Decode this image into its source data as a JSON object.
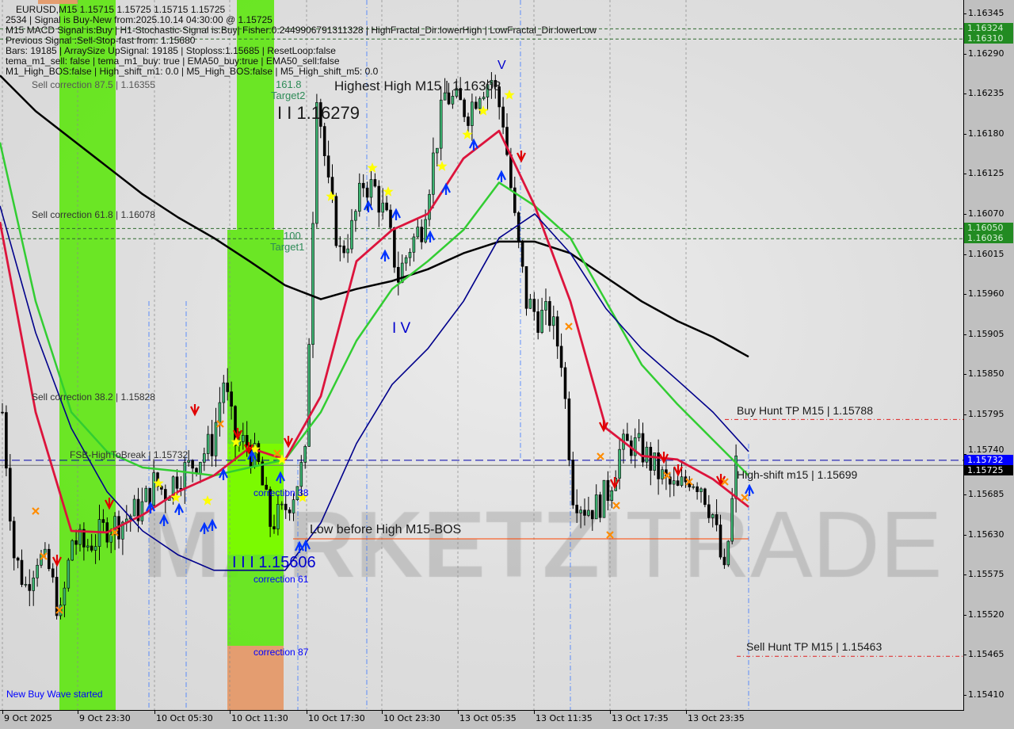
{
  "header": {
    "lines": [
      "EURUSD,M15  1.15715 1.15725 1.15715 1.15725",
      "2534 | Signal is Buy-New from:2025.10.14 04:30:00 @ 1.15725",
      "M15 MACD Signal is:Buy | H1-Stochastic-Signal is:Buy| Fisher:0.2449906791311328 | HighFractal_Dir:lowerHigh | LowFractal_Dir:lowerLow",
      "Previous Signal :Sell-Stop-fast from: 1.15680",
      "Bars: 19185 | ArraySize UpSignal: 19185 | Stoploss:1.15685 | ResetLoop:false",
      "tema_m1_sell: false | tema_m1_buy: true | EMA50_buy:true | EMA50_sell:false",
      "M1_High_BOS:false | High_shift_m1: 0.0 | M5_High_BOS:false | M5_High_shift_m5: 0.0"
    ]
  },
  "annotations": {
    "sell_corr_875": "Sell correction 87.5 | 1.16355",
    "target2_level": "161.8",
    "target2": "Target2",
    "highest_high": "Highest High  M15 | 1.16308",
    "hh_level": "I I 1.16279",
    "sell_corr_618": "Sell correction 61.8 | 1.16078",
    "target1_level": "100",
    "target1": "Target1",
    "wave_iv": "I V",
    "wave_v": "V",
    "sell_corr_382": "Sell correction 38.2 | 1.15828",
    "fsb": "FSB-HighToBreak | 1.15732",
    "correction_38": "correction 38",
    "low_before_high": "Low before High    M15-BOS",
    "lll_level": "I I I 1.15606",
    "correction_61": "correction 61",
    "correction_87": "correction 87",
    "new_buy_wave": "New Buy Wave started",
    "buy_hunt_tp": "Buy Hunt TP M15 | 1.15788",
    "high_shift": "High-shift m15 | 1.15699",
    "sell_hunt_tp": "Sell Hunt TP M15 | 1.15463"
  },
  "watermark": "MARKETZITRADE",
  "colors": {
    "ema_fast": "#dc143c",
    "ema_mid": "#32cd32",
    "ema_slow": "#00008b",
    "ma_long": "#000000",
    "buy_zone": "#64e61a",
    "sell_zone": "#e59a6a",
    "level_box": "#228b22",
    "bid_box": "#0000ff"
  },
  "chart_data": {
    "type": "candlestick",
    "symbol": "EURUSD",
    "timeframe": "M15",
    "ylim": [
      1.15385,
      1.1637
    ],
    "y_ticks": [
      "1.16345",
      "1.16290",
      "1.16235",
      "1.16180",
      "1.16125",
      "1.16070",
      "1.16015",
      "1.15960",
      "1.15905",
      "1.15850",
      "1.15795",
      "1.15740",
      "1.15685",
      "1.15630",
      "1.15575",
      "1.15520",
      "1.15465",
      "1.15410"
    ],
    "x_ticks": [
      "9 Oct 2025",
      "9 Oct 23:30",
      "10 Oct 05:30",
      "10 Oct 11:30",
      "10 Oct 17:30",
      "10 Oct 23:30",
      "13 Oct 05:35",
      "13 Oct 11:35",
      "13 Oct 17:35",
      "13 Oct 23:35"
    ],
    "highlighted_levels": [
      {
        "label": "1.16324",
        "price": 1.16324,
        "style": "level"
      },
      {
        "label": "1.16310",
        "price": 1.1631,
        "style": "level"
      },
      {
        "label": "1.16050",
        "price": 1.1605,
        "style": "level"
      },
      {
        "label": "1.16036",
        "price": 1.16036,
        "style": "level"
      },
      {
        "label": "1.15732",
        "price": 1.15732,
        "style": "ask"
      },
      {
        "label": "1.15725",
        "price": 1.15725,
        "style": "bid"
      }
    ],
    "close_path": [
      1.15798,
      1.15602,
      1.15559,
      1.15602,
      1.15581,
      1.15516,
      1.15624,
      1.15613,
      1.15624,
      1.15641,
      1.15646,
      1.15657,
      1.15668,
      1.157,
      1.15689,
      1.15711,
      1.15722,
      1.15738,
      1.15755,
      1.15842,
      1.15755,
      1.15755,
      1.15722,
      1.15646,
      1.15657,
      1.15689,
      1.15733,
      1.16244,
      1.16103,
      1.16016,
      1.16048,
      1.16113,
      1.16103,
      1.16059,
      1.15983,
      1.16026,
      1.16054,
      1.16146,
      1.16233,
      1.16222,
      1.16211,
      1.16244,
      1.16255,
      1.162,
      1.16059,
      1.1595,
      1.15929,
      1.15929,
      1.15874,
      1.15689,
      1.15668,
      1.15668,
      1.15689,
      1.15744,
      1.15755,
      1.15744,
      1.15722,
      1.157,
      1.15689,
      1.15711,
      1.157,
      1.15657,
      1.1557,
      1.15725
    ],
    "series": [
      {
        "key": "ma_long",
        "values": [
          1.1626,
          1.16211,
          1.16173,
          1.16135,
          1.16097,
          1.16065,
          1.16037,
          1.16005,
          1.15972,
          1.15953,
          1.15967,
          1.15978,
          1.15994,
          1.16016,
          1.16032,
          1.16032,
          1.16016,
          1.15983,
          1.1595,
          1.15923,
          1.15901,
          1.15874
        ]
      },
      {
        "key": "ema_mid",
        "values": [
          1.16168,
          1.1595,
          1.15798,
          1.15744,
          1.15722,
          1.15717,
          1.15711,
          1.15722,
          1.15733,
          1.15798,
          1.15896,
          1.15967,
          1.16005,
          1.16048,
          1.16113,
          1.16081,
          1.16037,
          1.1595,
          1.15863,
          1.15809,
          1.1576,
          1.15711
        ]
      },
      {
        "key": "ema_fast",
        "values": [
          1.16059,
          1.15798,
          1.15635,
          1.15633,
          1.15657,
          1.15689,
          1.15711,
          1.15749,
          1.15733,
          1.1582,
          1.16005,
          1.16048,
          1.1607,
          1.16146,
          1.16184,
          1.16081,
          1.1595,
          1.15776,
          1.15738,
          1.15733,
          1.15706,
          1.15668
        ]
      },
      {
        "key": "ema_slow",
        "values": [
          1.16081,
          1.15907,
          1.15776,
          1.15689,
          1.15635,
          1.15602,
          1.15581,
          1.15581,
          1.15581,
          1.15646,
          1.15755,
          1.15836,
          1.15885,
          1.1595,
          1.16037,
          1.1607,
          1.16016,
          1.1594,
          1.15885,
          1.15842,
          1.15798,
          1.15744
        ]
      }
    ]
  }
}
